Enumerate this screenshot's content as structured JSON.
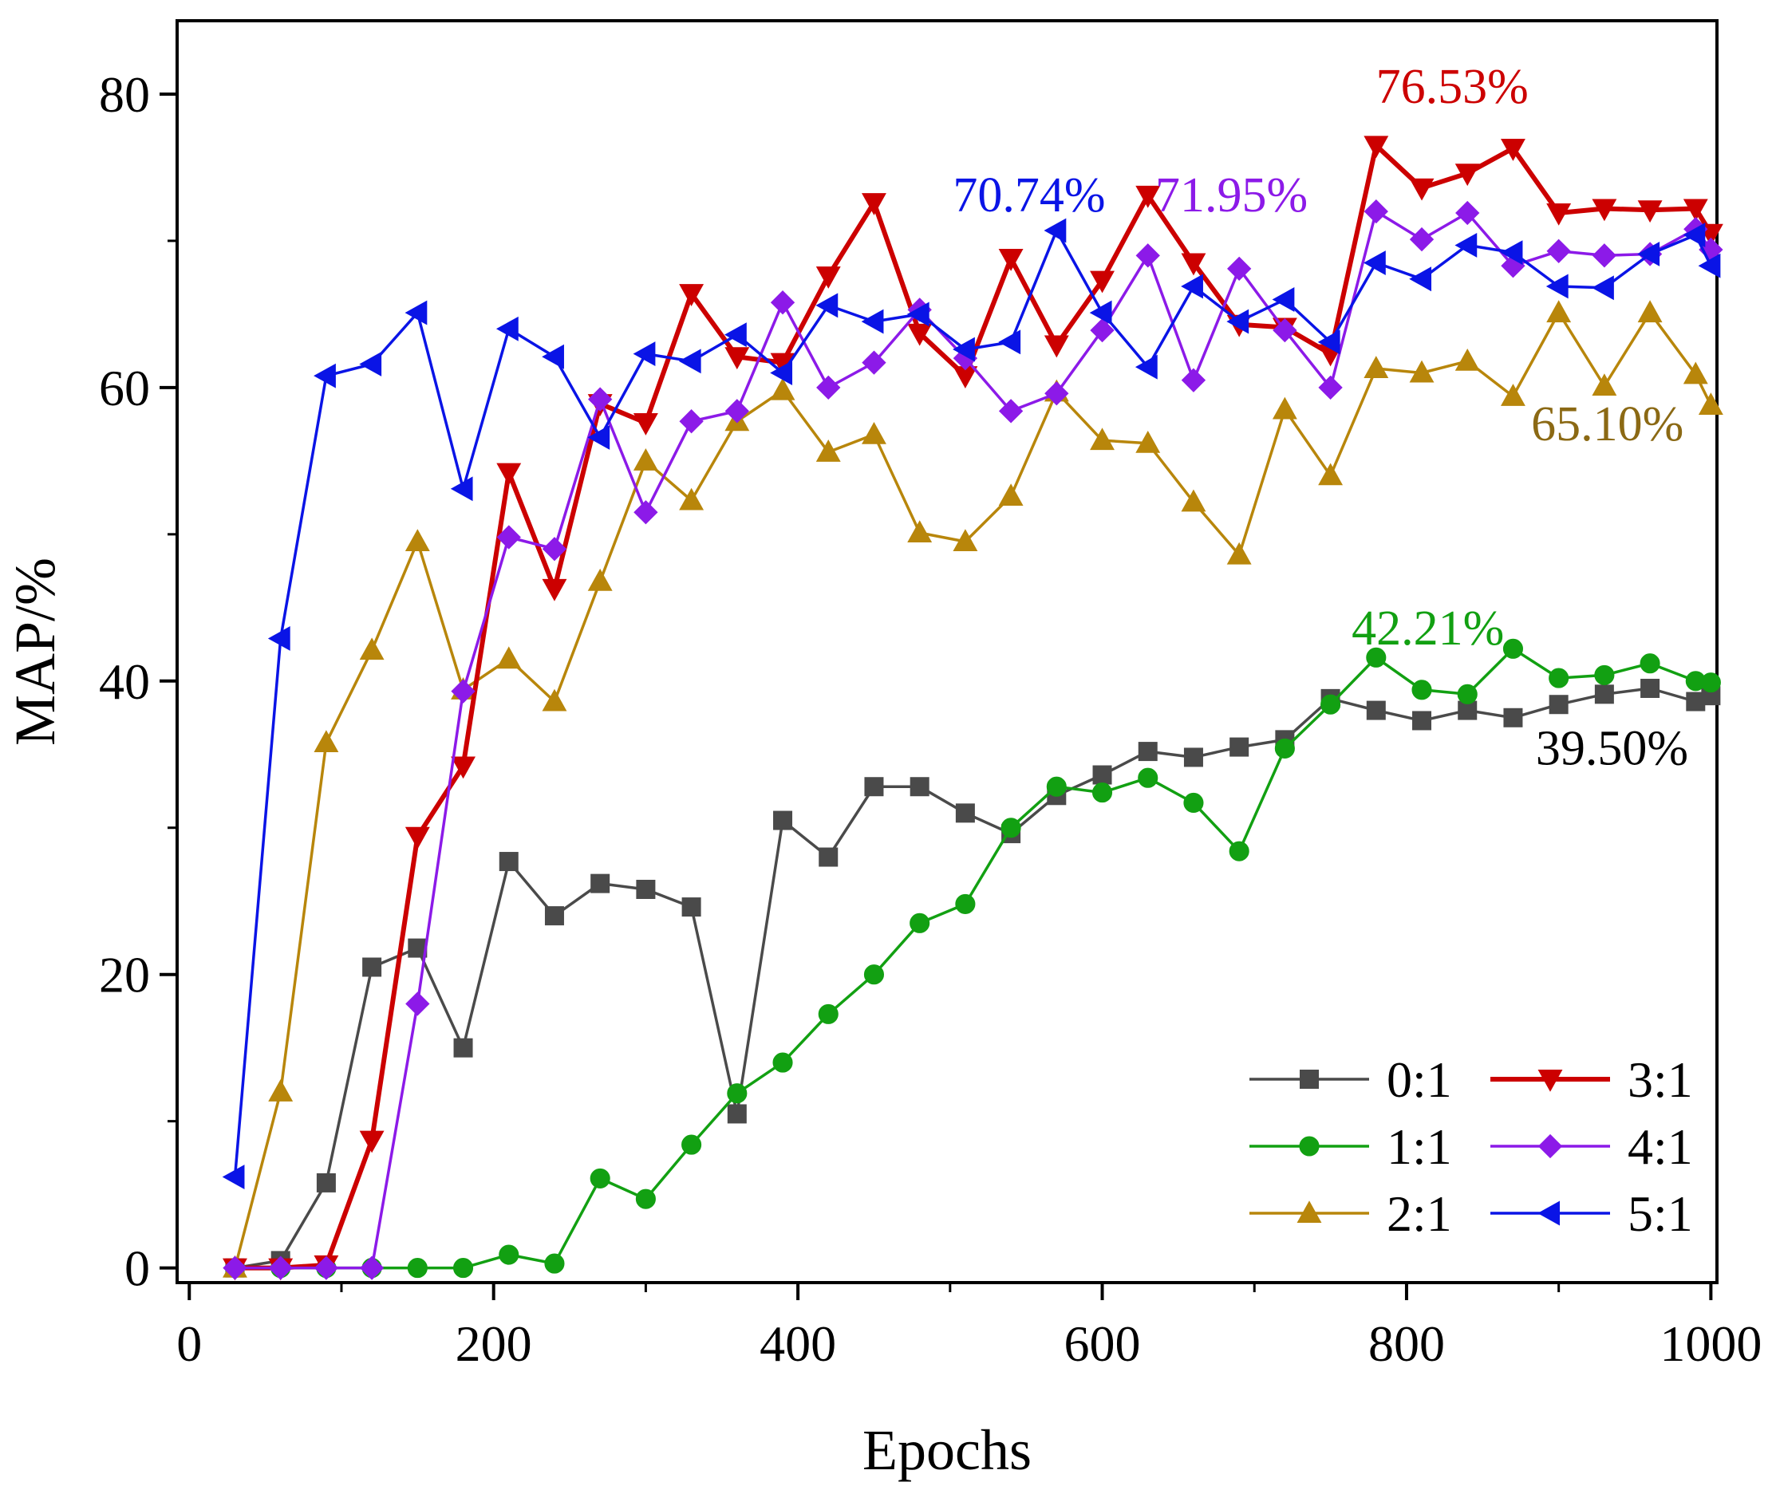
{
  "chart_data": {
    "type": "line",
    "title": "",
    "xlabel": "Epochs",
    "ylabel": "MAP/%",
    "xlim": [
      -8,
      1004
    ],
    "ylim": [
      -1,
      85
    ],
    "xticks": [
      0,
      200,
      400,
      600,
      800,
      1000
    ],
    "yticks": [
      0,
      20,
      40,
      60,
      80
    ],
    "grid": false,
    "legend_position": "bottom-right",
    "series": [
      {
        "name": "0:1",
        "color": "#4a4a4a",
        "marker": "square",
        "x": [
          30,
          60,
          90,
          120,
          150,
          180,
          210,
          240,
          270,
          300,
          330,
          360,
          390,
          420,
          450,
          480,
          510,
          540,
          570,
          600,
          630,
          660,
          690,
          720,
          750,
          780,
          810,
          840,
          870,
          900,
          930,
          960,
          990,
          1000
        ],
        "y": [
          0.0,
          0.5,
          5.8,
          20.5,
          21.8,
          15.0,
          27.7,
          24.0,
          26.2,
          25.8,
          24.6,
          10.5,
          30.5,
          28.0,
          32.8,
          32.8,
          31.0,
          29.6,
          32.2,
          33.6,
          35.2,
          34.8,
          35.5,
          36.0,
          38.8,
          38.0,
          37.3,
          38.0,
          37.5,
          38.4,
          39.1,
          39.5,
          38.6,
          39.0
        ]
      },
      {
        "name": "1:1",
        "color": "#12a012",
        "marker": "circle",
        "x": [
          30,
          60,
          90,
          120,
          150,
          180,
          210,
          240,
          270,
          300,
          330,
          360,
          390,
          420,
          450,
          480,
          510,
          540,
          570,
          600,
          630,
          660,
          690,
          720,
          750,
          780,
          810,
          840,
          870,
          900,
          930,
          960,
          990,
          1000
        ],
        "y": [
          0.0,
          0.0,
          0.0,
          0.0,
          0.0,
          0.0,
          0.9,
          0.3,
          6.1,
          4.7,
          8.4,
          11.9,
          14.0,
          17.3,
          20.0,
          23.5,
          24.8,
          30.0,
          32.8,
          32.4,
          33.4,
          31.7,
          28.4,
          35.4,
          38.4,
          41.6,
          39.4,
          39.1,
          42.2,
          40.2,
          40.4,
          41.2,
          40.0,
          39.9
        ]
      },
      {
        "name": "2:1",
        "color": "#b8860b",
        "marker": "triangle-up",
        "x": [
          30,
          60,
          90,
          120,
          150,
          180,
          210,
          240,
          270,
          300,
          330,
          360,
          390,
          420,
          450,
          480,
          510,
          540,
          570,
          600,
          630,
          660,
          690,
          720,
          750,
          780,
          810,
          840,
          870,
          900,
          930,
          960,
          990,
          1000
        ],
        "y": [
          0.0,
          12.0,
          35.8,
          42.1,
          49.5,
          39.4,
          41.5,
          38.6,
          46.8,
          55.0,
          52.3,
          57.7,
          59.8,
          55.6,
          56.8,
          50.1,
          49.5,
          52.6,
          59.7,
          56.4,
          56.2,
          52.2,
          48.6,
          58.5,
          54.0,
          61.3,
          61.0,
          61.8,
          59.4,
          65.1,
          60.1,
          65.1,
          60.9,
          58.8
        ]
      },
      {
        "name": "3:1",
        "color": "#cc0000",
        "marker": "triangle-down",
        "x": [
          30,
          60,
          90,
          120,
          150,
          180,
          210,
          240,
          270,
          300,
          330,
          360,
          390,
          420,
          450,
          480,
          510,
          540,
          570,
          600,
          630,
          660,
          690,
          720,
          750,
          780,
          810,
          840,
          870,
          900,
          930,
          960,
          990,
          1000
        ],
        "y": [
          0.0,
          0.0,
          0.2,
          8.7,
          29.4,
          34.2,
          54.2,
          46.3,
          58.9,
          57.6,
          66.4,
          62.1,
          61.7,
          67.6,
          72.6,
          63.7,
          60.8,
          68.8,
          62.9,
          67.3,
          73.1,
          68.5,
          64.3,
          64.1,
          62.3,
          76.5,
          73.6,
          74.6,
          76.3,
          71.9,
          72.2,
          72.1,
          72.2,
          70.5
        ]
      },
      {
        "name": "4:1",
        "color": "#8c1ae8",
        "marker": "diamond",
        "x": [
          30,
          60,
          90,
          120,
          150,
          180,
          210,
          240,
          270,
          300,
          330,
          360,
          390,
          420,
          450,
          480,
          510,
          540,
          570,
          600,
          630,
          660,
          690,
          720,
          750,
          780,
          810,
          840,
          870,
          900,
          930,
          960,
          990,
          1000
        ],
        "y": [
          0.0,
          0.0,
          0.0,
          0.0,
          18.0,
          39.3,
          49.8,
          49.0,
          59.2,
          51.5,
          57.7,
          58.4,
          65.8,
          60.0,
          61.7,
          65.3,
          62.0,
          58.4,
          59.6,
          63.9,
          69.0,
          60.5,
          68.1,
          63.9,
          60.0,
          72.0,
          70.1,
          71.9,
          68.3,
          69.3,
          69.0,
          69.1,
          70.8,
          69.4
        ]
      },
      {
        "name": "5:1",
        "color": "#0a14e6",
        "marker": "triangle-left",
        "x": [
          30,
          60,
          90,
          120,
          150,
          180,
          210,
          240,
          270,
          300,
          330,
          360,
          390,
          420,
          450,
          480,
          510,
          540,
          570,
          600,
          630,
          660,
          690,
          720,
          750,
          780,
          810,
          840,
          870,
          900,
          930,
          960,
          990,
          1000
        ],
        "y": [
          6.2,
          42.9,
          60.8,
          61.6,
          65.1,
          53.1,
          64.0,
          62.1,
          56.6,
          62.3,
          61.8,
          63.6,
          61.0,
          65.6,
          64.5,
          65.0,
          62.6,
          63.1,
          70.7,
          65.1,
          61.4,
          66.9,
          64.5,
          66.0,
          63.1,
          68.5,
          67.4,
          69.7,
          69.2,
          66.9,
          66.8,
          69.1,
          70.4,
          68.3
        ]
      }
    ],
    "annotations": [
      {
        "text": "76.53%",
        "x": 830,
        "y": 79.4,
        "color": "#cc0000"
      },
      {
        "text": "70.74%",
        "x": 552,
        "y": 72.0,
        "color": "#0a14e6"
      },
      {
        "text": "71.95%",
        "x": 685,
        "y": 72.0,
        "color": "#8c1ae8"
      },
      {
        "text": "65.10%",
        "x": 932,
        "y": 56.4,
        "color": "#8b6914"
      },
      {
        "text": "42.21%",
        "x": 814,
        "y": 42.5,
        "color": "#12a012"
      },
      {
        "text": "39.50%",
        "x": 935,
        "y": 34.3,
        "color": "#000000"
      }
    ]
  }
}
